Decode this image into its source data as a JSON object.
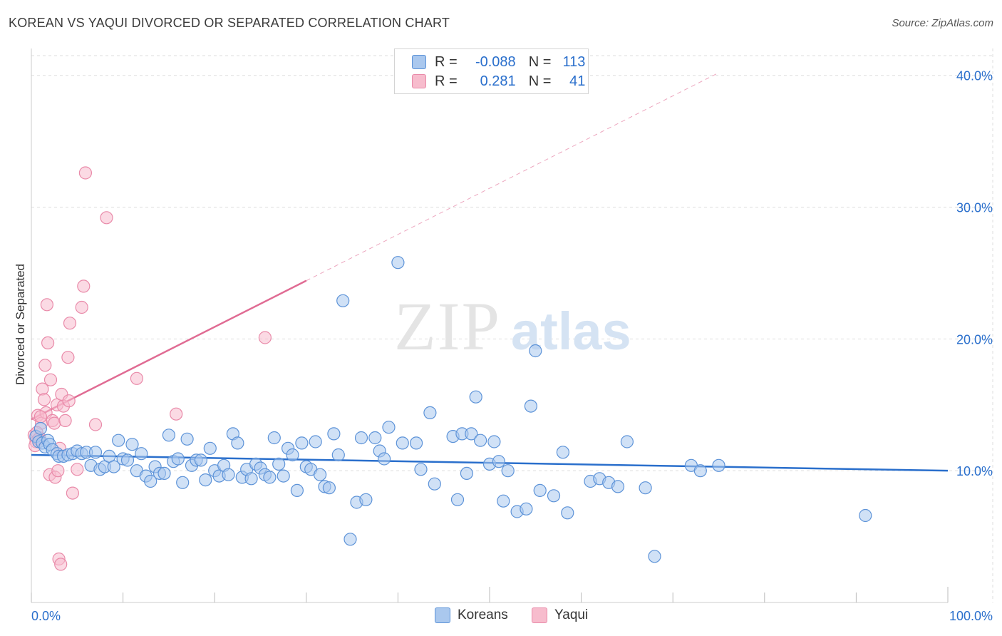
{
  "header": {
    "title": "KOREAN VS YAQUI DIVORCED OR SEPARATED CORRELATION CHART",
    "source": "Source: ZipAtlas.com"
  },
  "watermark": {
    "zip": "ZIP",
    "atlas": "atlas"
  },
  "stats_legend": {
    "rows": [
      {
        "r_label": "R =",
        "r_value": "-0.088",
        "n_label": "N =",
        "n_value": "113"
      },
      {
        "r_label": "R =",
        "r_value": "0.281",
        "n_label": "N =",
        "n_value": "41"
      }
    ]
  },
  "bottom_legend": {
    "koreans": "Koreans",
    "yaqui": "Yaqui"
  },
  "colors": {
    "korean_fill": "#aac8ee",
    "korean_stroke": "#5d93d8",
    "korean_line": "#2a6fcc",
    "yaqui_fill": "#f7bccd",
    "yaqui_stroke": "#e98aa9",
    "yaqui_line": "#e06b93",
    "axis_text": "#2a6fcc",
    "grid": "#dddddd"
  },
  "chart_data": {
    "type": "scatter",
    "title": "KOREAN VS YAQUI DIVORCED OR SEPARATED CORRELATION CHART",
    "xlabel": "",
    "ylabel": "Divorced or Separated",
    "xlim": [
      0,
      100
    ],
    "ylim": [
      0,
      41.5
    ],
    "x_tick_labels": [
      "0.0%",
      "100.0%"
    ],
    "y_ticks": [
      10,
      20,
      30,
      40
    ],
    "y_tick_labels": [
      "10.0%",
      "20.0%",
      "30.0%",
      "40.0%"
    ],
    "grid": true,
    "series": [
      {
        "name": "Koreans",
        "R": -0.088,
        "N": 113,
        "trend": {
          "x0": 0,
          "y0": 11.2,
          "x1": 100,
          "y1": 10.0,
          "dashed_from": null
        },
        "points": [
          [
            0.5,
            12.6
          ],
          [
            0.8,
            12.2
          ],
          [
            1.0,
            13.2
          ],
          [
            1.2,
            12.1
          ],
          [
            1.5,
            11.8
          ],
          [
            1.8,
            12.3
          ],
          [
            2.0,
            12.0
          ],
          [
            2.3,
            11.6
          ],
          [
            2.8,
            11.3
          ],
          [
            3.0,
            11.1
          ],
          [
            3.5,
            11.1
          ],
          [
            4.0,
            11.2
          ],
          [
            4.5,
            11.3
          ],
          [
            5.0,
            11.5
          ],
          [
            5.5,
            11.3
          ],
          [
            6.0,
            11.4
          ],
          [
            6.5,
            10.4
          ],
          [
            7.0,
            11.4
          ],
          [
            7.5,
            10.1
          ],
          [
            8.0,
            10.3
          ],
          [
            8.5,
            11.1
          ],
          [
            9.0,
            10.3
          ],
          [
            9.5,
            12.3
          ],
          [
            10.0,
            10.9
          ],
          [
            10.5,
            10.8
          ],
          [
            11.0,
            12.0
          ],
          [
            11.5,
            10.0
          ],
          [
            12.0,
            11.3
          ],
          [
            12.5,
            9.6
          ],
          [
            13.0,
            9.2
          ],
          [
            13.5,
            10.3
          ],
          [
            14.0,
            9.8
          ],
          [
            14.5,
            9.8
          ],
          [
            15.0,
            12.7
          ],
          [
            15.5,
            10.7
          ],
          [
            16.0,
            10.9
          ],
          [
            16.5,
            9.1
          ],
          [
            17.0,
            12.4
          ],
          [
            17.5,
            10.4
          ],
          [
            18.0,
            10.8
          ],
          [
            18.5,
            10.8
          ],
          [
            19.0,
            9.3
          ],
          [
            19.5,
            11.7
          ],
          [
            20.0,
            10.0
          ],
          [
            20.5,
            9.6
          ],
          [
            21.0,
            10.4
          ],
          [
            21.5,
            9.7
          ],
          [
            22.0,
            12.8
          ],
          [
            22.5,
            12.1
          ],
          [
            23.0,
            9.5
          ],
          [
            23.5,
            10.1
          ],
          [
            24.0,
            9.4
          ],
          [
            24.5,
            10.5
          ],
          [
            25.0,
            10.2
          ],
          [
            25.5,
            9.7
          ],
          [
            26.0,
            9.5
          ],
          [
            26.5,
            12.5
          ],
          [
            27.0,
            10.5
          ],
          [
            27.5,
            9.6
          ],
          [
            28.0,
            11.7
          ],
          [
            28.5,
            11.2
          ],
          [
            29.0,
            8.5
          ],
          [
            29.5,
            12.1
          ],
          [
            30.0,
            10.3
          ],
          [
            30.5,
            10.1
          ],
          [
            31.0,
            12.2
          ],
          [
            31.5,
            9.7
          ],
          [
            32.0,
            8.8
          ],
          [
            32.5,
            8.7
          ],
          [
            33.0,
            12.8
          ],
          [
            33.5,
            11.2
          ],
          [
            34.0,
            22.9
          ],
          [
            34.8,
            4.8
          ],
          [
            35.5,
            7.6
          ],
          [
            36.0,
            12.5
          ],
          [
            36.5,
            7.8
          ],
          [
            37.5,
            12.5
          ],
          [
            38.0,
            11.5
          ],
          [
            38.5,
            10.9
          ],
          [
            39.0,
            13.3
          ],
          [
            40.0,
            25.8
          ],
          [
            40.5,
            12.1
          ],
          [
            42.0,
            12.1
          ],
          [
            42.5,
            10.1
          ],
          [
            43.5,
            14.4
          ],
          [
            44.0,
            9.0
          ],
          [
            46.0,
            12.6
          ],
          [
            46.5,
            7.8
          ],
          [
            47.0,
            12.8
          ],
          [
            47.5,
            9.8
          ],
          [
            48.0,
            12.8
          ],
          [
            48.5,
            15.6
          ],
          [
            49.0,
            12.3
          ],
          [
            50.0,
            10.5
          ],
          [
            50.5,
            12.2
          ],
          [
            51.0,
            10.7
          ],
          [
            51.5,
            7.7
          ],
          [
            52.0,
            10.0
          ],
          [
            53.0,
            6.9
          ],
          [
            54.0,
            7.1
          ],
          [
            54.5,
            14.9
          ],
          [
            55.0,
            19.1
          ],
          [
            55.5,
            8.5
          ],
          [
            57.0,
            8.1
          ],
          [
            58.0,
            11.4
          ],
          [
            58.5,
            6.8
          ],
          [
            61.0,
            9.2
          ],
          [
            62.0,
            9.4
          ],
          [
            63.0,
            9.1
          ],
          [
            64.0,
            8.8
          ],
          [
            65.0,
            12.2
          ],
          [
            67.0,
            8.7
          ],
          [
            68.0,
            3.5
          ],
          [
            72.0,
            10.4
          ],
          [
            73.0,
            10.0
          ],
          [
            75.0,
            10.4
          ],
          [
            91.0,
            6.6
          ]
        ]
      },
      {
        "name": "Yaqui",
        "R": 0.281,
        "N": 41,
        "trend": {
          "x0": 0,
          "y0": 13.9,
          "x1": 75,
          "y1": 40.2,
          "dashed_from": 30
        },
        "points": [
          [
            0.3,
            12.7
          ],
          [
            0.5,
            12.2
          ],
          [
            0.7,
            14.2
          ],
          [
            0.9,
            12.5
          ],
          [
            1.1,
            13.6
          ],
          [
            1.2,
            16.2
          ],
          [
            1.4,
            15.4
          ],
          [
            1.5,
            18.0
          ],
          [
            1.6,
            14.4
          ],
          [
            1.7,
            22.6
          ],
          [
            1.8,
            19.7
          ],
          [
            2.0,
            9.7
          ],
          [
            2.1,
            16.9
          ],
          [
            2.3,
            13.8
          ],
          [
            2.5,
            13.6
          ],
          [
            2.6,
            9.5
          ],
          [
            2.8,
            15.0
          ],
          [
            2.9,
            10.0
          ],
          [
            3.0,
            3.3
          ],
          [
            3.1,
            11.7
          ],
          [
            3.2,
            2.9
          ],
          [
            3.3,
            15.8
          ],
          [
            3.5,
            14.9
          ],
          [
            3.7,
            13.8
          ],
          [
            4.0,
            18.6
          ],
          [
            4.1,
            15.3
          ],
          [
            4.2,
            21.2
          ],
          [
            4.5,
            8.3
          ],
          [
            5.0,
            10.1
          ],
          [
            5.5,
            22.4
          ],
          [
            5.7,
            24.0
          ],
          [
            5.9,
            32.6
          ],
          [
            7.0,
            13.5
          ],
          [
            8.2,
            29.2
          ],
          [
            11.5,
            17.0
          ],
          [
            15.8,
            14.3
          ],
          [
            25.5,
            20.1
          ],
          [
            0.4,
            11.9
          ],
          [
            0.6,
            12.9
          ],
          [
            0.8,
            12.4
          ],
          [
            1.0,
            14.1
          ]
        ]
      }
    ]
  }
}
